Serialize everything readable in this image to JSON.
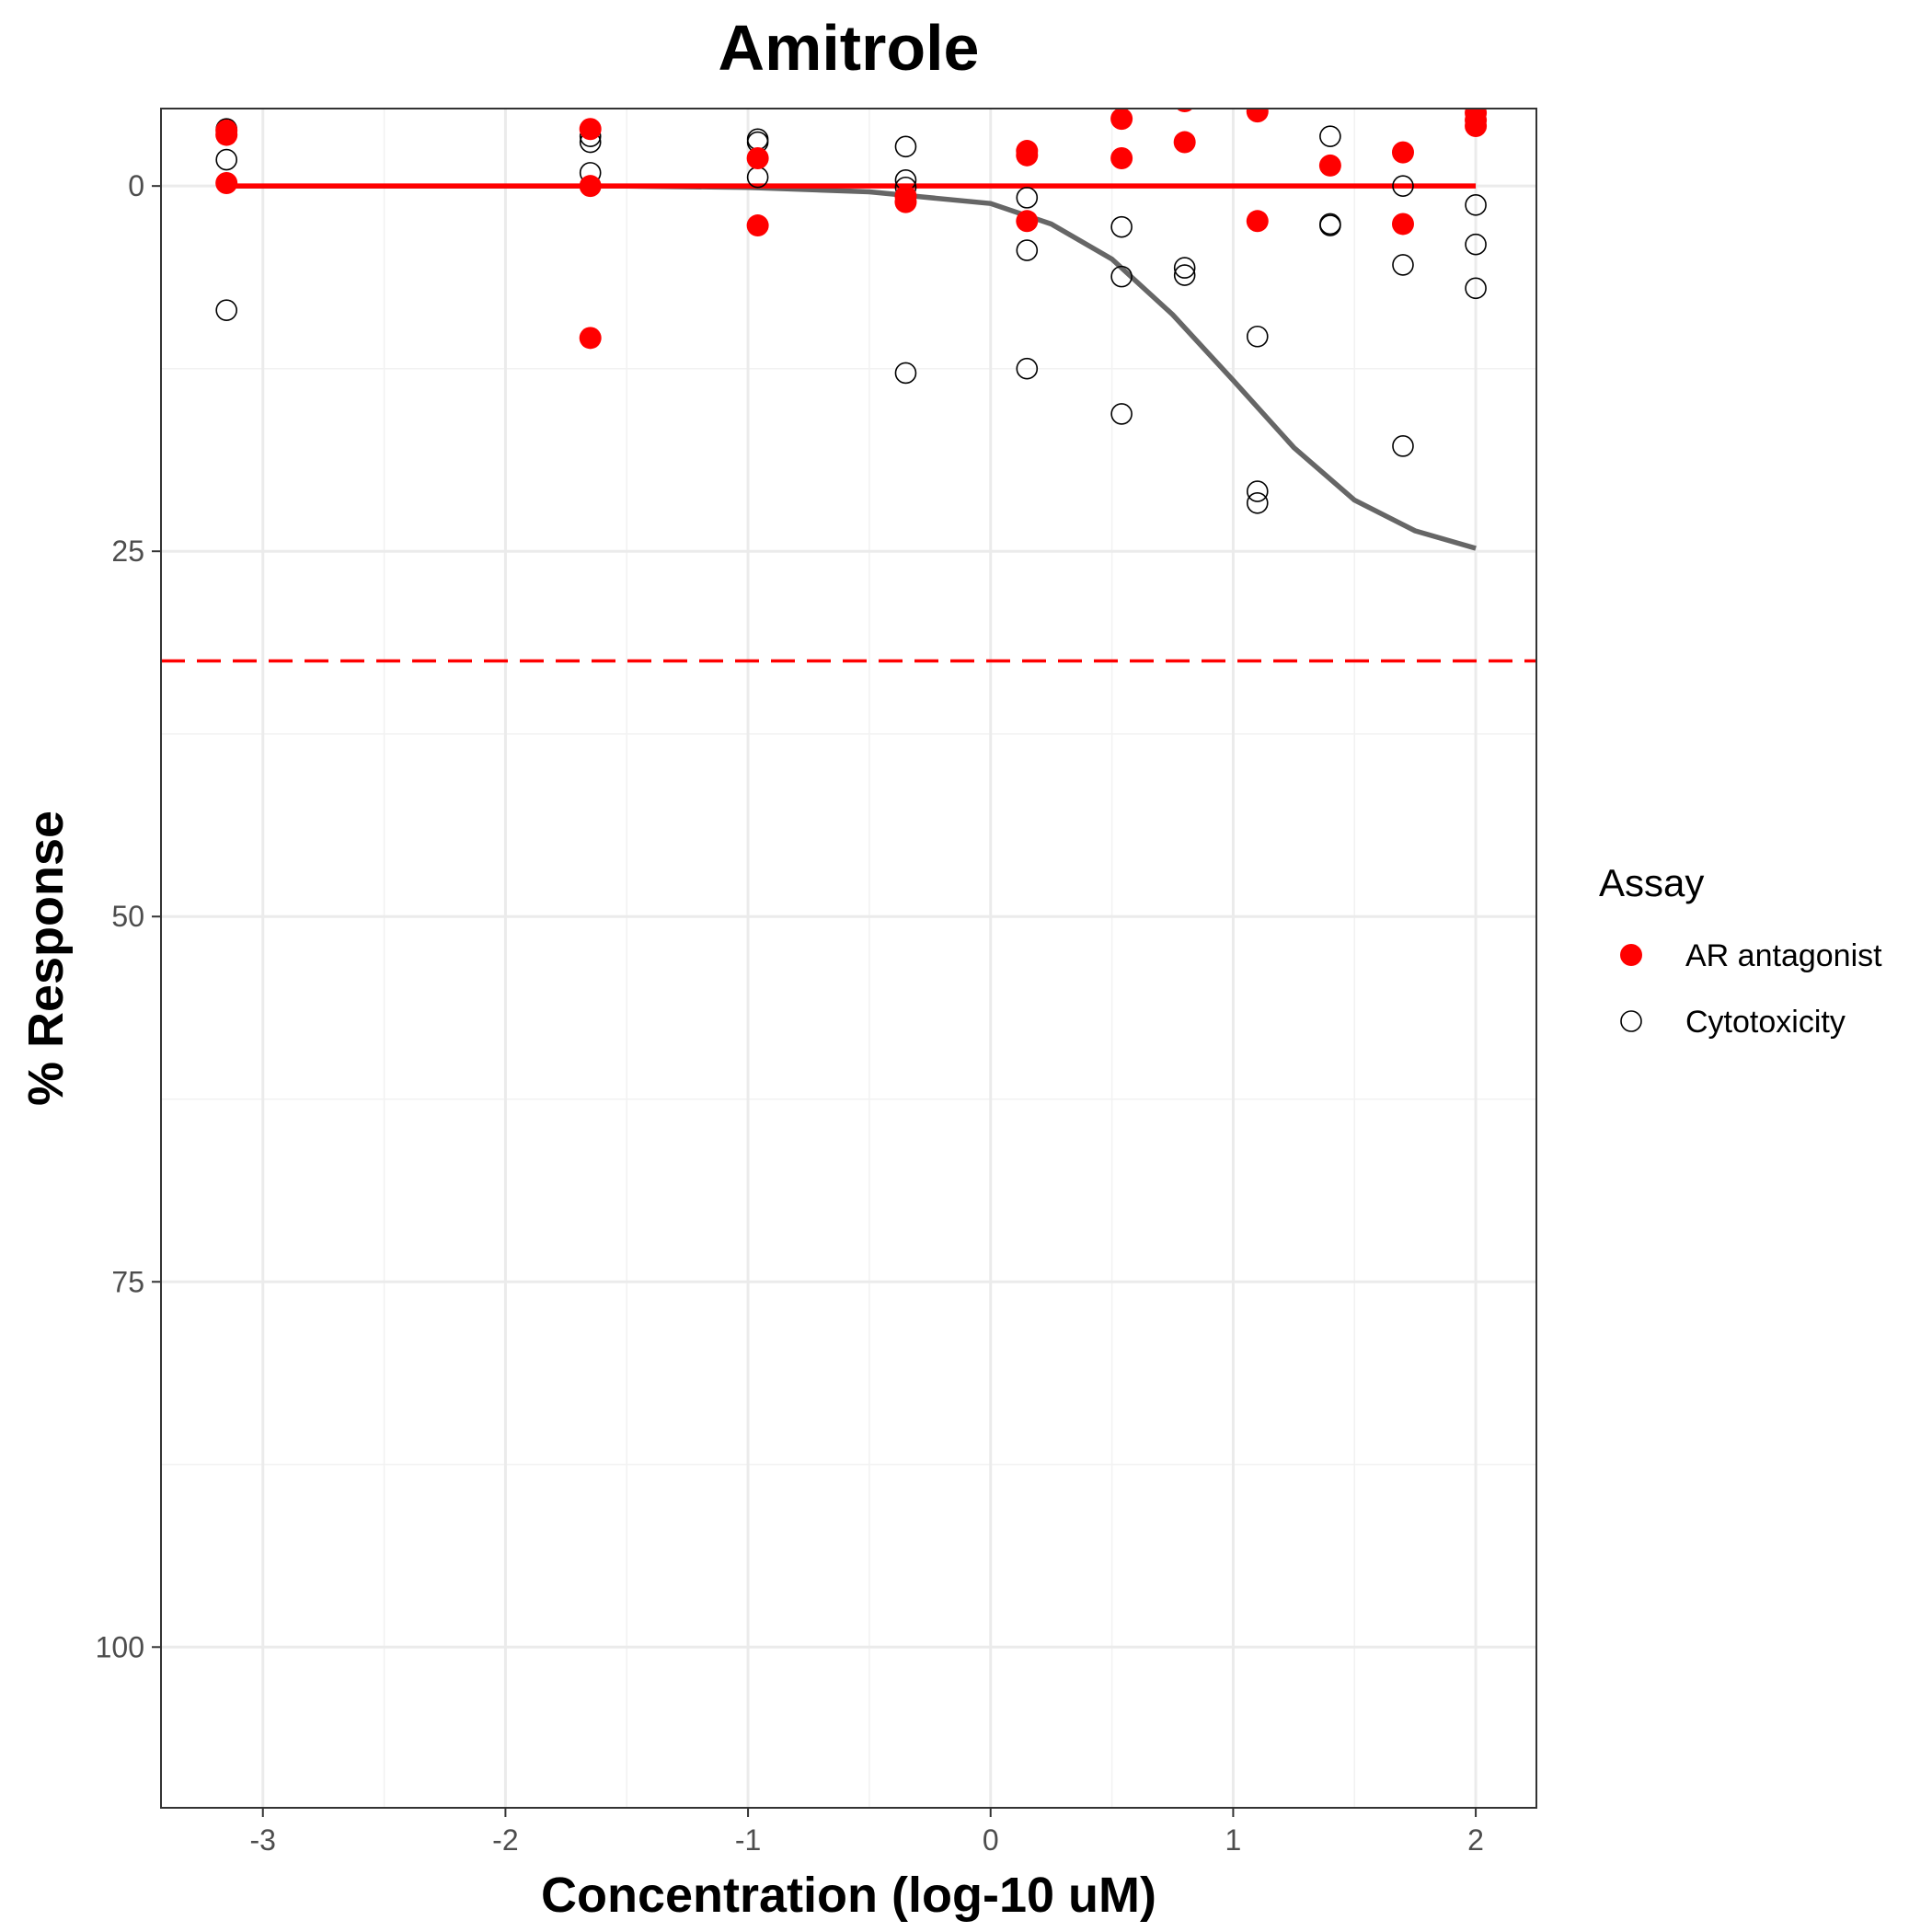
{
  "chart_data": {
    "type": "scatter",
    "title": "Amitrole",
    "xlabel": "Concentration (log-10 uM)",
    "ylabel": "% Response",
    "xlim": [
      -3.42,
      2.25
    ],
    "ylim": [
      -5.3,
      111.0
    ],
    "y_reversed": true,
    "x_ticks": [
      -3,
      -2,
      -1,
      0,
      1,
      2
    ],
    "x_tick_labels": [
      "-3",
      "-2",
      "-1",
      "0",
      "1",
      "2"
    ],
    "y_ticks": [
      0,
      25,
      50,
      75,
      100
    ],
    "y_tick_labels": [
      "0",
      "25",
      "50",
      "75",
      "100"
    ],
    "grid": true,
    "legend": {
      "title": "Assay",
      "position": "right",
      "entries": [
        {
          "label": "AR antagonist",
          "color": "#ff0000",
          "marker": "filled-circle"
        },
        {
          "label": "Cytotoxicity",
          "color": "#000000",
          "marker": "open-circle"
        }
      ]
    },
    "threshold_line": {
      "y": 32.5,
      "color": "#ff0000",
      "style": "dashed"
    },
    "series": [
      {
        "name": "AR antagonist",
        "color": "#ff0000",
        "marker": "filled-circle",
        "points": [
          {
            "x": -3.15,
            "y": -3.8
          },
          {
            "x": -3.15,
            "y": -3.5
          },
          {
            "x": -3.15,
            "y": -0.2
          },
          {
            "x": -1.65,
            "y": -3.9
          },
          {
            "x": -1.65,
            "y": 0.0
          },
          {
            "x": -1.65,
            "y": 10.4
          },
          {
            "x": -0.96,
            "y": -6.0
          },
          {
            "x": -0.96,
            "y": -1.9
          },
          {
            "x": -0.96,
            "y": 2.7
          },
          {
            "x": -0.35,
            "y": 0.7
          },
          {
            "x": -0.35,
            "y": 1.1
          },
          {
            "x": 0.15,
            "y": -2.4
          },
          {
            "x": 0.15,
            "y": -2.1
          },
          {
            "x": 0.15,
            "y": 2.4
          },
          {
            "x": 0.54,
            "y": -4.6
          },
          {
            "x": 0.54,
            "y": -1.9
          },
          {
            "x": 0.8,
            "y": -5.8
          },
          {
            "x": 0.8,
            "y": -3.0
          },
          {
            "x": 1.1,
            "y": -5.1
          },
          {
            "x": 1.1,
            "y": 2.4
          },
          {
            "x": 1.4,
            "y": -1.4
          },
          {
            "x": 1.7,
            "y": -2.3
          },
          {
            "x": 1.7,
            "y": 2.6
          },
          {
            "x": 2.0,
            "y": -5.0
          },
          {
            "x": 2.0,
            "y": -4.5
          },
          {
            "x": 2.0,
            "y": -4.1
          }
        ],
        "fit_curve": {
          "x_start": -3.15,
          "x_end": 2.0,
          "y": 0.0
        }
      },
      {
        "name": "Cytotoxicity",
        "color": "#000000",
        "marker": "open-circle",
        "points": [
          {
            "x": -3.15,
            "y": -3.9
          },
          {
            "x": -3.15,
            "y": -1.8
          },
          {
            "x": -3.15,
            "y": 8.5
          },
          {
            "x": -1.65,
            "y": -3.4
          },
          {
            "x": -1.65,
            "y": -3.0
          },
          {
            "x": -1.65,
            "y": -0.9
          },
          {
            "x": -0.96,
            "y": -3.2
          },
          {
            "x": -0.96,
            "y": -3.0
          },
          {
            "x": -0.96,
            "y": -0.6
          },
          {
            "x": -0.35,
            "y": -2.7
          },
          {
            "x": -0.35,
            "y": -0.4
          },
          {
            "x": -0.35,
            "y": 0.1
          },
          {
            "x": -0.35,
            "y": 12.8
          },
          {
            "x": 0.15,
            "y": 0.8
          },
          {
            "x": 0.15,
            "y": 4.4
          },
          {
            "x": 0.15,
            "y": 12.5
          },
          {
            "x": 0.54,
            "y": 2.8
          },
          {
            "x": 0.54,
            "y": 6.2
          },
          {
            "x": 0.54,
            "y": 15.6
          },
          {
            "x": 0.8,
            "y": 5.6
          },
          {
            "x": 0.8,
            "y": 6.1
          },
          {
            "x": 1.1,
            "y": 10.3
          },
          {
            "x": 1.1,
            "y": 20.9
          },
          {
            "x": 1.1,
            "y": 21.7
          },
          {
            "x": 1.4,
            "y": -3.4
          },
          {
            "x": 1.4,
            "y": 2.6
          },
          {
            "x": 1.4,
            "y": 2.7
          },
          {
            "x": 1.7,
            "y": 0.0
          },
          {
            "x": 1.7,
            "y": 5.4
          },
          {
            "x": 1.7,
            "y": 17.8
          },
          {
            "x": 2.0,
            "y": 1.3
          },
          {
            "x": 2.0,
            "y": 4.0
          },
          {
            "x": 2.0,
            "y": 7.0
          }
        ],
        "fit_curve": {
          "x": [
            -3.15,
            -2.5,
            -2.0,
            -1.5,
            -1.0,
            -0.5,
            0.0,
            0.25,
            0.5,
            0.75,
            1.0,
            1.25,
            1.5,
            1.75,
            2.0
          ],
          "y": [
            0.0,
            0.0,
            0.0,
            0.0,
            0.1,
            0.4,
            1.2,
            2.6,
            5.0,
            8.8,
            13.3,
            17.9,
            21.5,
            23.6,
            24.8
          ]
        }
      }
    ]
  }
}
